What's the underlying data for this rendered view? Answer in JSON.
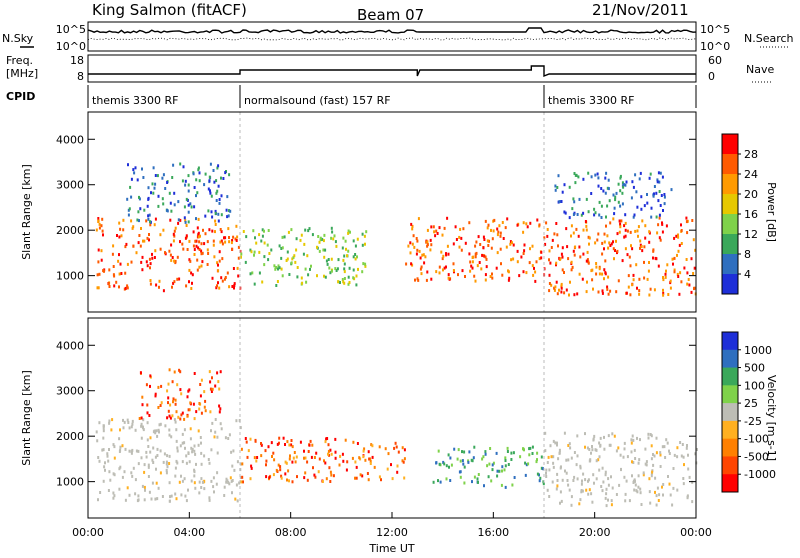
{
  "header": {
    "station": "King Salmon (fitACF)",
    "beam": "Beam 07",
    "date": "21/Nov/2011"
  },
  "status_panels": {
    "nsky_label": "N.Sky",
    "nsearch_label": "N.Search",
    "freq_label_line1": "Freq.",
    "freq_label_line2": "[MHz]",
    "nave_label": "Nave",
    "cpid_label": "CPID",
    "noise_left_ticks": [
      "10^5",
      "10^0"
    ],
    "noise_right_ticks": [
      "10^5",
      "10^0"
    ],
    "freq_left_ticks": [
      "18",
      "8"
    ],
    "nave_right_ticks": [
      "60",
      "0"
    ],
    "cpid_segments": [
      {
        "label": "themis 3300 RF",
        "start_hour": 0.0,
        "end_hour": 6.0
      },
      {
        "label": "normalsound (fast) 157 RF",
        "start_hour": 6.0,
        "end_hour": 18.0
      },
      {
        "label": "themis 3300 RF",
        "start_hour": 18.0,
        "end_hour": 24.0
      }
    ]
  },
  "chart_data": [
    {
      "type": "heatmap",
      "title": "Power",
      "ylabel": "Slant Range [km]",
      "xlabel": "",
      "xlim": [
        0,
        24
      ],
      "ylim": [
        200,
        4600
      ],
      "y_ticks": [
        1000,
        2000,
        3000,
        4000
      ],
      "colorbar": {
        "label": "Power [dB]",
        "ticks": [
          "28",
          "24",
          "20",
          "16",
          "12",
          "8",
          "4"
        ],
        "colors": [
          "#ff0000",
          "#ff5a00",
          "#ff9a00",
          "#e6c800",
          "#7fd24a",
          "#3aa85a",
          "#2f6fbf",
          "#1e2fd8"
        ]
      },
      "regions": [
        {
          "t0": 0.3,
          "t1": 6.0,
          "r0": 700,
          "r1": 2300,
          "level": "high"
        },
        {
          "t0": 1.5,
          "t1": 5.6,
          "r0": 2200,
          "r1": 3500,
          "level": "low"
        },
        {
          "t0": 6.0,
          "t1": 11.0,
          "r0": 800,
          "r1": 2100,
          "level": "mid"
        },
        {
          "t0": 12.5,
          "t1": 18.0,
          "r0": 900,
          "r1": 2300,
          "level": "high"
        },
        {
          "t0": 18.0,
          "t1": 24.0,
          "r0": 600,
          "r1": 2300,
          "level": "high"
        },
        {
          "t0": 18.3,
          "t1": 23.0,
          "r0": 2300,
          "r1": 3300,
          "level": "low"
        }
      ]
    },
    {
      "type": "heatmap",
      "title": "Velocity",
      "ylabel": "Slant Range [km]",
      "xlabel": "Time UT",
      "xlim": [
        0,
        24
      ],
      "ylim": [
        200,
        4600
      ],
      "y_ticks": [
        1000,
        2000,
        3000,
        4000
      ],
      "x_ticks": [
        "00:00",
        "04:00",
        "08:00",
        "12:00",
        "16:00",
        "20:00",
        "00:00"
      ],
      "colorbar": {
        "label": "Velocity [m s-1]",
        "ticks": [
          "1000",
          "500",
          "100",
          "25",
          "-25",
          "-100",
          "-500",
          "-1000"
        ],
        "colors": [
          "#1e2fd8",
          "#2f6fbf",
          "#3aa85a",
          "#7fd24a",
          "#bdbdb5",
          "#ffb020",
          "#ff8000",
          "#ff4500",
          "#ff0000"
        ]
      },
      "regions": [
        {
          "t0": 0.3,
          "t1": 6.0,
          "r0": 600,
          "r1": 2400,
          "level": "ground"
        },
        {
          "t0": 2.0,
          "t1": 5.2,
          "r0": 2400,
          "r1": 3500,
          "level": "neg"
        },
        {
          "t0": 6.0,
          "t1": 12.5,
          "r0": 1000,
          "r1": 2000,
          "level": "neg"
        },
        {
          "t0": 13.5,
          "t1": 18.0,
          "r0": 900,
          "r1": 1800,
          "level": "pos"
        },
        {
          "t0": 18.0,
          "t1": 24.0,
          "r0": 500,
          "r1": 2100,
          "level": "ground"
        }
      ]
    }
  ]
}
